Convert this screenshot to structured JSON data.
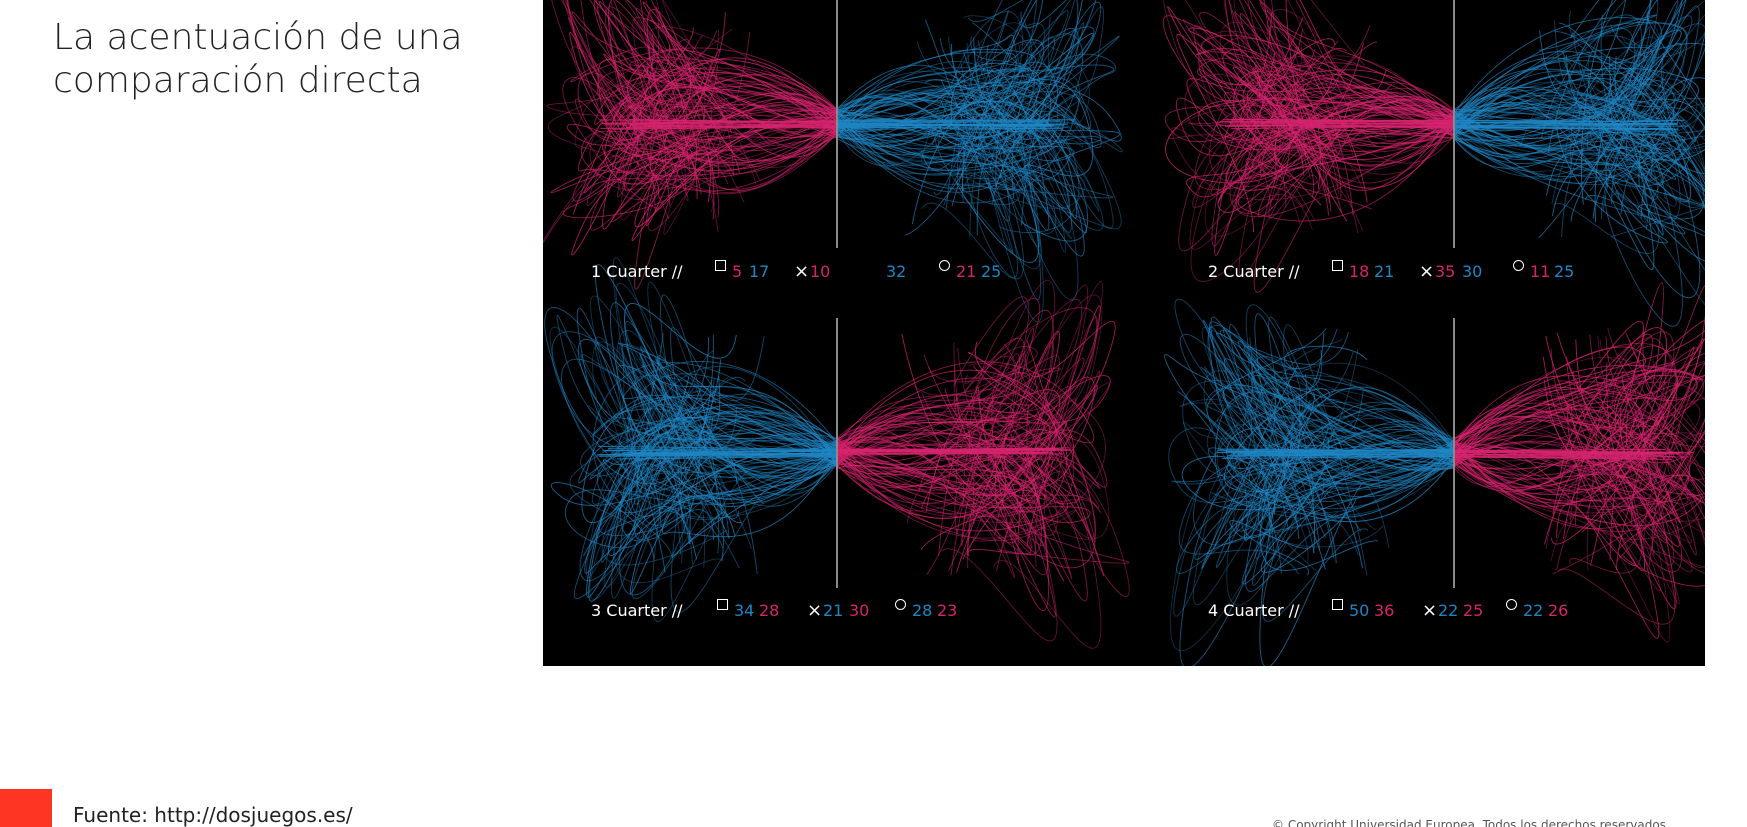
{
  "slide": {
    "title": "La acentuación de una comparación directa",
    "source": "Fuente: http://dosjuegos.es/",
    "copyright": "© Copyright Universidad Europea. Todos los derechos reservados"
  },
  "colors": {
    "pink": "#d6246e",
    "blue": "#1f86c4",
    "background": "#000000",
    "accent": "#ff3524"
  },
  "quarters": [
    {
      "label": "1 Cuarter //",
      "left_color": "pink",
      "square": [
        "5",
        "17"
      ],
      "cross": [
        "10",
        "32"
      ],
      "circle": [
        "21",
        "25"
      ],
      "first_color": "pink"
    },
    {
      "label": "2 Cuarter //",
      "left_color": "pink",
      "square": [
        "18",
        "21"
      ],
      "cross": [
        "35",
        "30"
      ],
      "circle": [
        "11",
        "25"
      ],
      "first_color": "pink"
    },
    {
      "label": "3 Cuarter //",
      "left_color": "blue",
      "square": [
        "34",
        "28"
      ],
      "cross": [
        "21",
        "30"
      ],
      "circle": [
        "28",
        "23"
      ],
      "first_color": "blue"
    },
    {
      "label": "4 Cuarter //",
      "left_color": "blue",
      "square": [
        "50",
        "36"
      ],
      "cross": [
        "22",
        "25"
      ],
      "circle": [
        "22",
        "26"
      ],
      "first_color": "blue"
    }
  ],
  "icons": {
    "square": "square-symbol-icon",
    "cross": "cross-symbol-icon",
    "circle": "circle-symbol-icon"
  }
}
